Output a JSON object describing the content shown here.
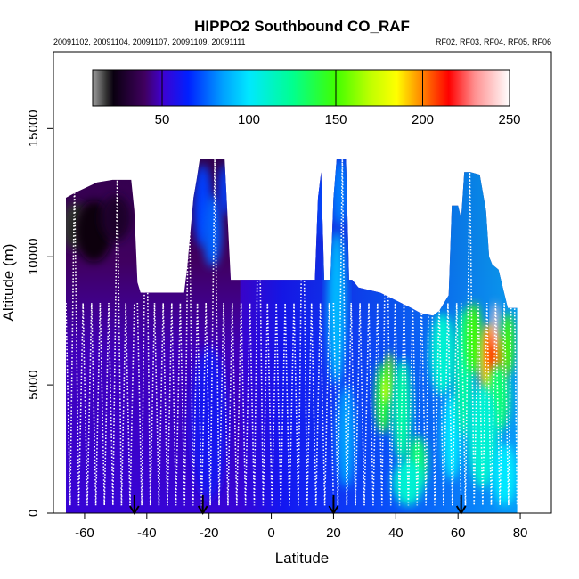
{
  "chart_data": {
    "type": "heatmap",
    "title": "HIPPO2 Southbound CO_RAF",
    "subtitle_left": "20091102, 20091104, 20091107, 20091109, 20091111",
    "subtitle_right": "RF02, RF03, RF04, RF05, RF06",
    "xlabel": "Latitude",
    "ylabel": "Altitude (m)",
    "xlim": [
      -70,
      90
    ],
    "ylim": [
      0,
      18000
    ],
    "xticks": [
      "-60",
      "-40",
      "-20",
      "0",
      "20",
      "40",
      "60",
      "80"
    ],
    "yticks": [
      "0",
      "5000",
      "10000",
      "15000"
    ],
    "colorbar": {
      "range": [
        10,
        250
      ],
      "ticks": [
        "50",
        "100",
        "150",
        "200",
        "250"
      ],
      "stops": [
        {
          "v": 10,
          "c": "#a0a0a0"
        },
        {
          "v": 18,
          "c": "#303030"
        },
        {
          "v": 22,
          "c": "#0a0010"
        },
        {
          "v": 40,
          "c": "#400060"
        },
        {
          "v": 50,
          "c": "#4000d0"
        },
        {
          "v": 65,
          "c": "#0020ff"
        },
        {
          "v": 85,
          "c": "#00a0ff"
        },
        {
          "v": 100,
          "c": "#00e8ff"
        },
        {
          "v": 125,
          "c": "#00ff90"
        },
        {
          "v": 150,
          "c": "#40ff00"
        },
        {
          "v": 170,
          "c": "#c0ff00"
        },
        {
          "v": 185,
          "c": "#ffff00"
        },
        {
          "v": 200,
          "c": "#ff8000"
        },
        {
          "v": 215,
          "c": "#ff0000"
        },
        {
          "v": 230,
          "c": "#ff9090"
        },
        {
          "v": 250,
          "c": "#ffffff"
        }
      ]
    },
    "flight_legs": [
      {
        "lat0": -66,
        "lat1": -44,
        "ceiling": 13000
      },
      {
        "lat0": -43,
        "lat1": -21,
        "ceiling": 13800
      },
      {
        "lat0": -21,
        "lat1": 20,
        "ceiling": 13800
      },
      {
        "lat0": 20,
        "lat1": 61,
        "ceiling": 13800
      },
      {
        "lat0": 61,
        "lat1": 79,
        "ceiling": 13300
      }
    ],
    "airports_lat": [
      -44,
      -22,
      20,
      61
    ],
    "profile": [
      [
        -66,
        12300
      ],
      [
        -63,
        12500
      ],
      [
        -56,
        12900
      ],
      [
        -51,
        13000
      ],
      [
        -45,
        13000
      ],
      [
        -44,
        11800
      ],
      [
        -43,
        9000
      ],
      [
        -42,
        8600
      ],
      [
        -28,
        8600
      ],
      [
        -27,
        9600
      ],
      [
        -25,
        12300
      ],
      [
        -24,
        13000
      ],
      [
        -23,
        13800
      ],
      [
        -15,
        13800
      ],
      [
        -13,
        9100
      ],
      [
        -12,
        9100
      ],
      [
        14,
        9100
      ],
      [
        15,
        12300
      ],
      [
        16,
        13300
      ],
      [
        17,
        9100
      ],
      [
        19,
        9100
      ],
      [
        20,
        12300
      ],
      [
        21,
        13800
      ],
      [
        24,
        13800
      ],
      [
        25,
        9100
      ],
      [
        26,
        9100
      ],
      [
        28,
        8800
      ],
      [
        35,
        8600
      ],
      [
        40,
        8300
      ],
      [
        45,
        8000
      ],
      [
        48,
        7800
      ],
      [
        52,
        7700
      ],
      [
        54,
        7900
      ],
      [
        56,
        8300
      ],
      [
        57,
        8500
      ],
      [
        58,
        12000
      ],
      [
        60,
        12000
      ],
      [
        61,
        11500
      ],
      [
        62,
        13300
      ],
      [
        64,
        13300
      ],
      [
        67,
        13200
      ],
      [
        69,
        11800
      ],
      [
        70,
        10000
      ],
      [
        71,
        9700
      ],
      [
        73,
        9500
      ],
      [
        76,
        8000
      ],
      [
        79,
        8000
      ],
      [
        79,
        0
      ],
      [
        -66,
        0
      ]
    ],
    "field_cells": [
      {
        "lat": -63,
        "alt": 11200,
        "rx": 5,
        "ry": 900,
        "value": 18
      },
      {
        "lat": -57,
        "alt": 11000,
        "rx": 6,
        "ry": 1200,
        "value": 22
      },
      {
        "lat": -50,
        "alt": 11500,
        "rx": 5,
        "ry": 900,
        "value": 28
      },
      {
        "lat": -22,
        "alt": 12000,
        "rx": 3,
        "ry": 1600,
        "value": 70
      },
      {
        "lat": -19,
        "alt": 11000,
        "rx": 3,
        "ry": 1400,
        "value": 75
      },
      {
        "lat": -15,
        "alt": 12600,
        "rx": 2,
        "ry": 1000,
        "value": 70
      },
      {
        "lat": -20,
        "alt": 3500,
        "rx": 6,
        "ry": 3000,
        "value": 60
      },
      {
        "lat": 16,
        "alt": 12000,
        "rx": 1.5,
        "ry": 1200,
        "value": 72
      },
      {
        "lat": 22,
        "alt": 12500,
        "rx": 2.5,
        "ry": 1300,
        "value": 80
      },
      {
        "lat": 21,
        "alt": 8000,
        "rx": 3,
        "ry": 3000,
        "value": 90
      },
      {
        "lat": 24,
        "alt": 3000,
        "rx": 3,
        "ry": 2000,
        "value": 85
      },
      {
        "lat": 36,
        "alt": 4500,
        "rx": 2.5,
        "ry": 1400,
        "value": 140
      },
      {
        "lat": 37,
        "alt": 4800,
        "rx": 1.2,
        "ry": 500,
        "value": 185
      },
      {
        "lat": 38,
        "alt": 5500,
        "rx": 1.2,
        "ry": 800,
        "value": 160
      },
      {
        "lat": 42,
        "alt": 4000,
        "rx": 3,
        "ry": 2000,
        "value": 120
      },
      {
        "lat": 47,
        "alt": 2000,
        "rx": 3,
        "ry": 1000,
        "value": 130
      },
      {
        "lat": 44,
        "alt": 1200,
        "rx": 5,
        "ry": 900,
        "value": 110
      },
      {
        "lat": 55,
        "alt": 6200,
        "rx": 4,
        "ry": 1600,
        "value": 110
      },
      {
        "lat": 58,
        "alt": 3000,
        "rx": 3,
        "ry": 1700,
        "value": 100
      },
      {
        "lat": 62,
        "alt": 5500,
        "rx": 3,
        "ry": 2500,
        "value": 120
      },
      {
        "lat": 65,
        "alt": 6800,
        "rx": 2.5,
        "ry": 1400,
        "value": 150
      },
      {
        "lat": 70,
        "alt": 5900,
        "rx": 3,
        "ry": 1500,
        "value": 190
      },
      {
        "lat": 71,
        "alt": 6300,
        "rx": 1.8,
        "ry": 900,
        "value": 210
      },
      {
        "lat": 74,
        "alt": 6000,
        "rx": 1.8,
        "ry": 900,
        "value": 200
      },
      {
        "lat": 72,
        "alt": 7300,
        "rx": 1.2,
        "ry": 900,
        "value": 240
      },
      {
        "lat": 76,
        "alt": 6600,
        "rx": 2,
        "ry": 1200,
        "value": 150
      },
      {
        "lat": 73,
        "alt": 4500,
        "rx": 3.5,
        "ry": 1300,
        "value": 130
      },
      {
        "lat": 68,
        "alt": 3000,
        "rx": 5,
        "ry": 2000,
        "value": 110
      },
      {
        "lat": 75,
        "alt": 1500,
        "rx": 4,
        "ry": 1200,
        "value": 100
      }
    ]
  }
}
